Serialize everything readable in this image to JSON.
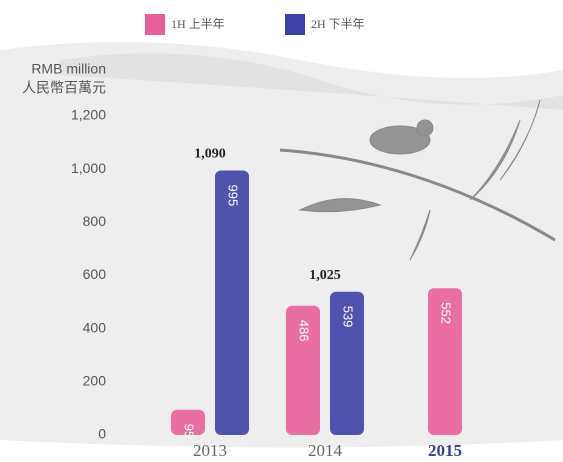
{
  "chart_data": {
    "type": "bar",
    "y_axis_label": [
      "RMB million",
      "人民幣百萬元"
    ],
    "categories": [
      "2013",
      "2014",
      "2015"
    ],
    "series": [
      {
        "name": "1H 上半年",
        "color": "#e8609a",
        "values": [
          95,
          486,
          552
        ]
      },
      {
        "name": "2H 下半年",
        "color": "#3f3fa6",
        "values": [
          995,
          539,
          null
        ]
      }
    ],
    "totals": {
      "values": [
        1090,
        1025
      ],
      "value_labels": [
        "1,090",
        "1,025"
      ]
    },
    "ylim": [
      0,
      1200
    ],
    "yticks": [
      0,
      200,
      400,
      600,
      800,
      {
        "value": 1000,
        "label": "1,000"
      },
      {
        "value": 1200,
        "label": "1,200"
      }
    ],
    "highlight_category_color": "#3a3a9a"
  }
}
